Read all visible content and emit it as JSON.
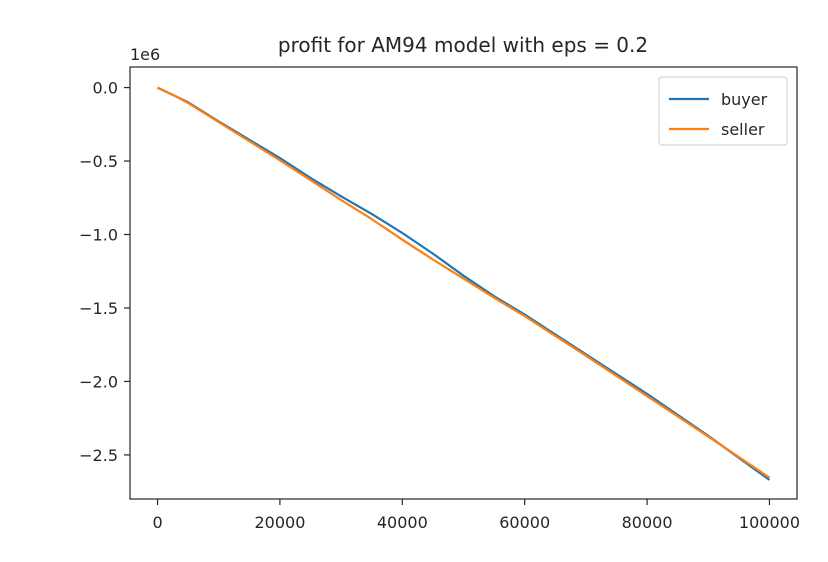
{
  "chart_data": {
    "type": "line",
    "title": "profit for AM94 model with eps = 0.2",
    "xlabel": "",
    "ylabel": "",
    "xlim": [
      -4500,
      104500
    ],
    "ylim": [
      -2800000,
      140000
    ],
    "x_ticks": [
      0,
      20000,
      40000,
      60000,
      80000,
      100000
    ],
    "x_tick_labels": [
      "0",
      "20000",
      "40000",
      "60000",
      "80000",
      "100000"
    ],
    "y_ticks": [
      0,
      -500000,
      -1000000,
      -1500000,
      -2000000,
      -2500000
    ],
    "y_tick_labels": [
      "0.0",
      "−0.5",
      "−1.0",
      "−1.5",
      "−2.0",
      "−2.5"
    ],
    "y_offset_label": "1e6",
    "grid": false,
    "legend_position": "top-right",
    "series": [
      {
        "name": "buyer",
        "color": "#1f77b4",
        "x": [
          0,
          3000,
          5000,
          10000,
          20000,
          25000,
          30000,
          35000,
          40000,
          45000,
          50000,
          55000,
          60000,
          70000,
          80000,
          90000,
          100000
        ],
        "y": [
          0,
          -60000,
          -100000,
          -230000,
          -480000,
          -615000,
          -740000,
          -860000,
          -990000,
          -1130000,
          -1280000,
          -1420000,
          -1545000,
          -1815000,
          -2085000,
          -2370000,
          -2670000
        ]
      },
      {
        "name": "seller",
        "color": "#ff7f0e",
        "x": [
          0,
          3000,
          5000,
          10000,
          20000,
          25000,
          30000,
          35000,
          40000,
          45000,
          50000,
          55000,
          60000,
          70000,
          80000,
          90000,
          100000
        ],
        "y": [
          0,
          -60000,
          -105000,
          -235000,
          -495000,
          -630000,
          -765000,
          -895000,
          -1035000,
          -1170000,
          -1300000,
          -1430000,
          -1555000,
          -1825000,
          -2100000,
          -2375000,
          -2655000
        ]
      }
    ]
  }
}
